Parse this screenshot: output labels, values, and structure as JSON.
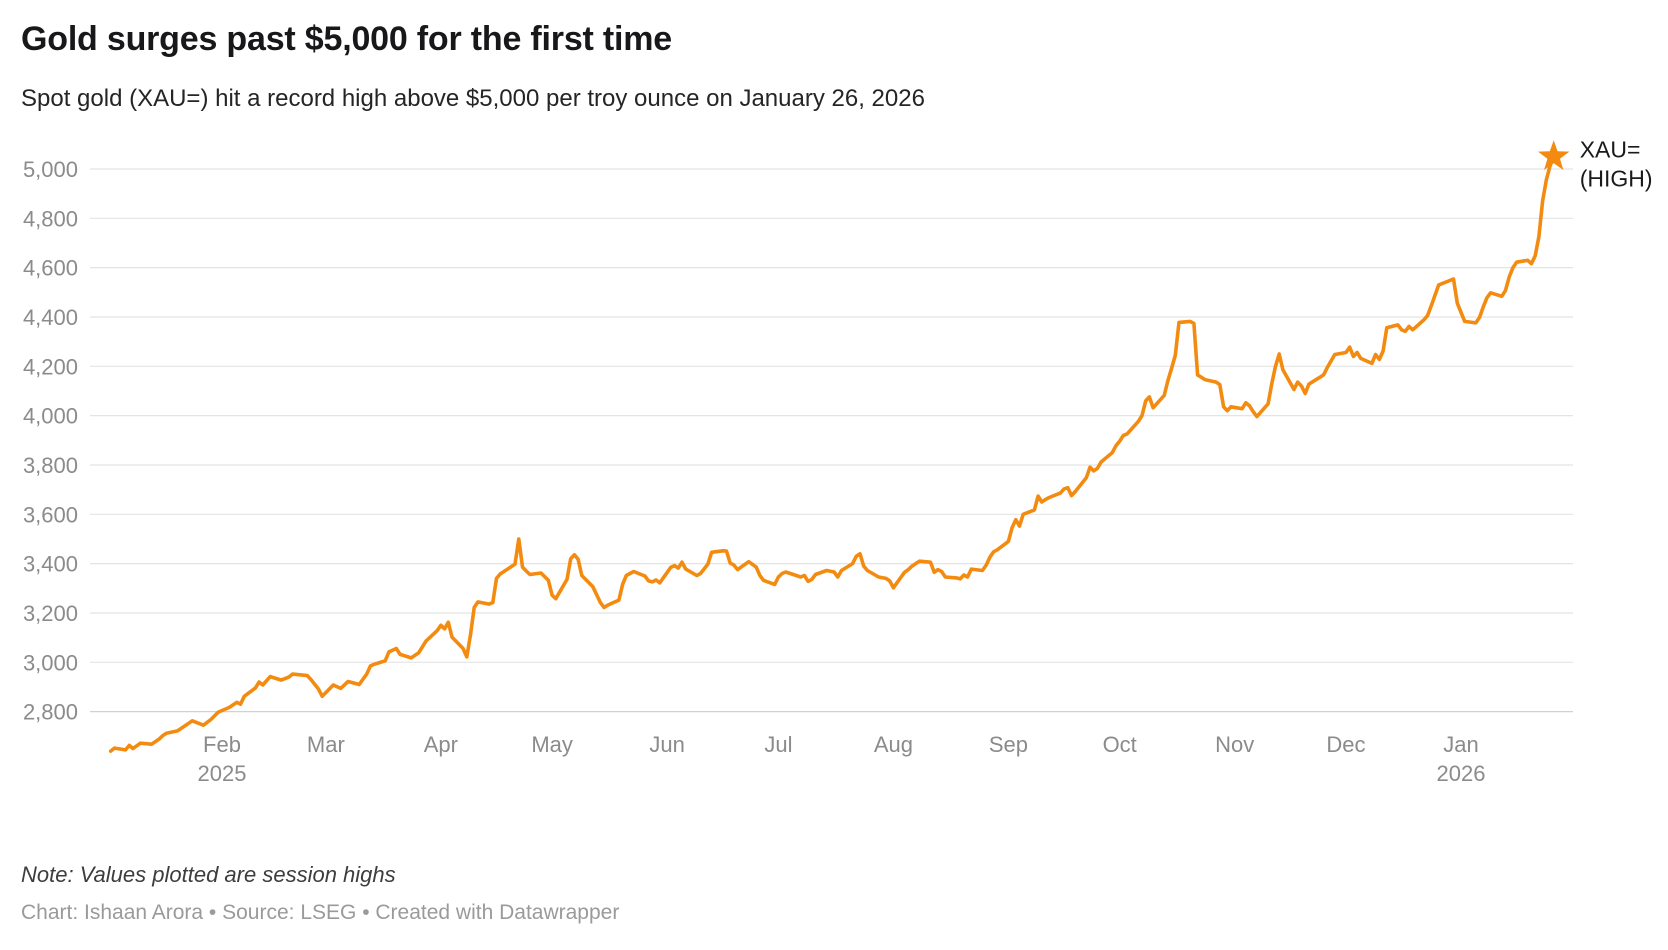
{
  "header": {
    "title": "Gold surges past $5,000 for the first time",
    "subtitle": "Spot gold (XAU=) hit a record high above $5,000 per troy ounce on January 26, 2026"
  },
  "footer": {
    "note": "Note: Values plotted are session highs",
    "byline": "Chart: Ishaan Arora • Source: LSEG • Created with Datawrapper"
  },
  "annotation": {
    "line1": "XAU=",
    "line2": "(HIGH)"
  },
  "colors": {
    "line": "#F38B10",
    "star": "#F38B10",
    "grid": "#E4E4E4",
    "baseline": "#D2D2D2",
    "axis_text": "#8B8B8B",
    "annotation_text": "#1A1A1A"
  },
  "chart_data": {
    "type": "line",
    "title": "Gold surges past $5,000 for the first time",
    "subtitle": "Spot gold (XAU=) hit a record high above $5,000 per troy ounce on January 26, 2026",
    "unit": "USD per troy ounce",
    "grid": "horizontal",
    "legend_position": "end-of-line annotation",
    "marker": "star-at-last-point",
    "ylim": [
      2620,
      5060
    ],
    "xlim": [
      "2025-01-02",
      "2026-01-26"
    ],
    "yticks": [
      2800,
      3000,
      3200,
      3400,
      3600,
      3800,
      4000,
      4200,
      4400,
      4600,
      4800,
      5000
    ],
    "xticks": [
      {
        "label": "Feb",
        "date": "2025-02-01",
        "year": "2025"
      },
      {
        "label": "Mar",
        "date": "2025-03-01"
      },
      {
        "label": "Apr",
        "date": "2025-04-01"
      },
      {
        "label": "May",
        "date": "2025-05-01"
      },
      {
        "label": "Jun",
        "date": "2025-06-01"
      },
      {
        "label": "Jul",
        "date": "2025-07-01"
      },
      {
        "label": "Aug",
        "date": "2025-08-01"
      },
      {
        "label": "Sep",
        "date": "2025-09-01"
      },
      {
        "label": "Oct",
        "date": "2025-10-01"
      },
      {
        "label": "Nov",
        "date": "2025-11-01"
      },
      {
        "label": "Dec",
        "date": "2025-12-01"
      },
      {
        "label": "Jan",
        "date": "2026-01-01",
        "year": "2026"
      }
    ],
    "series": [
      {
        "name": "XAU= (HIGH)",
        "points": [
          [
            "2025-01-02",
            2640
          ],
          [
            "2025-01-03",
            2652
          ],
          [
            "2025-01-06",
            2645
          ],
          [
            "2025-01-07",
            2663
          ],
          [
            "2025-01-08",
            2650
          ],
          [
            "2025-01-10",
            2672
          ],
          [
            "2025-01-13",
            2668
          ],
          [
            "2025-01-15",
            2688
          ],
          [
            "2025-01-16",
            2702
          ],
          [
            "2025-01-17",
            2712
          ],
          [
            "2025-01-20",
            2722
          ],
          [
            "2025-01-22",
            2742
          ],
          [
            "2025-01-24",
            2763
          ],
          [
            "2025-01-27",
            2745
          ],
          [
            "2025-01-29",
            2768
          ],
          [
            "2025-01-31",
            2798
          ],
          [
            "2025-02-03",
            2817
          ],
          [
            "2025-02-05",
            2838
          ],
          [
            "2025-02-06",
            2830
          ],
          [
            "2025-02-07",
            2862
          ],
          [
            "2025-02-10",
            2896
          ],
          [
            "2025-02-11",
            2920
          ],
          [
            "2025-02-12",
            2908
          ],
          [
            "2025-02-14",
            2942
          ],
          [
            "2025-02-17",
            2928
          ],
          [
            "2025-02-19",
            2940
          ],
          [
            "2025-02-20",
            2952
          ],
          [
            "2025-02-24",
            2946
          ],
          [
            "2025-02-25",
            2930
          ],
          [
            "2025-02-27",
            2892
          ],
          [
            "2025-02-28",
            2862
          ],
          [
            "2025-03-03",
            2908
          ],
          [
            "2025-03-05",
            2894
          ],
          [
            "2025-03-07",
            2922
          ],
          [
            "2025-03-10",
            2910
          ],
          [
            "2025-03-12",
            2952
          ],
          [
            "2025-03-13",
            2985
          ],
          [
            "2025-03-14",
            2992
          ],
          [
            "2025-03-17",
            3006
          ],
          [
            "2025-03-18",
            3042
          ],
          [
            "2025-03-20",
            3056
          ],
          [
            "2025-03-21",
            3032
          ],
          [
            "2025-03-24",
            3018
          ],
          [
            "2025-03-26",
            3038
          ],
          [
            "2025-03-27",
            3062
          ],
          [
            "2025-03-28",
            3086
          ],
          [
            "2025-03-31",
            3128
          ],
          [
            "2025-04-01",
            3150
          ],
          [
            "2025-04-02",
            3136
          ],
          [
            "2025-04-03",
            3162
          ],
          [
            "2025-04-04",
            3102
          ],
          [
            "2025-04-07",
            3056
          ],
          [
            "2025-04-08",
            3022
          ],
          [
            "2025-04-09",
            3112
          ],
          [
            "2025-04-10",
            3222
          ],
          [
            "2025-04-11",
            3245
          ],
          [
            "2025-04-14",
            3236
          ],
          [
            "2025-04-15",
            3242
          ],
          [
            "2025-04-16",
            3340
          ],
          [
            "2025-04-17",
            3358
          ],
          [
            "2025-04-21",
            3398
          ],
          [
            "2025-04-22",
            3500
          ],
          [
            "2025-04-23",
            3386
          ],
          [
            "2025-04-24",
            3370
          ],
          [
            "2025-04-25",
            3356
          ],
          [
            "2025-04-28",
            3362
          ],
          [
            "2025-04-30",
            3332
          ],
          [
            "2025-05-01",
            3272
          ],
          [
            "2025-05-02",
            3258
          ],
          [
            "2025-05-05",
            3336
          ],
          [
            "2025-05-06",
            3420
          ],
          [
            "2025-05-07",
            3436
          ],
          [
            "2025-05-08",
            3418
          ],
          [
            "2025-05-09",
            3352
          ],
          [
            "2025-05-12",
            3306
          ],
          [
            "2025-05-14",
            3242
          ],
          [
            "2025-05-15",
            3222
          ],
          [
            "2025-05-16",
            3232
          ],
          [
            "2025-05-19",
            3252
          ],
          [
            "2025-05-20",
            3316
          ],
          [
            "2025-05-21",
            3352
          ],
          [
            "2025-05-23",
            3368
          ],
          [
            "2025-05-26",
            3350
          ],
          [
            "2025-05-27",
            3330
          ],
          [
            "2025-05-28",
            3326
          ],
          [
            "2025-05-29",
            3334
          ],
          [
            "2025-05-30",
            3322
          ],
          [
            "2025-06-02",
            3385
          ],
          [
            "2025-06-03",
            3392
          ],
          [
            "2025-06-04",
            3382
          ],
          [
            "2025-06-05",
            3406
          ],
          [
            "2025-06-06",
            3378
          ],
          [
            "2025-06-09",
            3352
          ],
          [
            "2025-06-10",
            3360
          ],
          [
            "2025-06-12",
            3398
          ],
          [
            "2025-06-13",
            3446
          ],
          [
            "2025-06-16",
            3452
          ],
          [
            "2025-06-17",
            3451
          ],
          [
            "2025-06-18",
            3402
          ],
          [
            "2025-06-19",
            3394
          ],
          [
            "2025-06-20",
            3376
          ],
          [
            "2025-06-23",
            3408
          ],
          [
            "2025-06-25",
            3386
          ],
          [
            "2025-06-26",
            3352
          ],
          [
            "2025-06-27",
            3332
          ],
          [
            "2025-06-30",
            3316
          ],
          [
            "2025-07-01",
            3346
          ],
          [
            "2025-07-02",
            3360
          ],
          [
            "2025-07-03",
            3366
          ],
          [
            "2025-07-07",
            3346
          ],
          [
            "2025-07-08",
            3352
          ],
          [
            "2025-07-09",
            3328
          ],
          [
            "2025-07-10",
            3336
          ],
          [
            "2025-07-11",
            3356
          ],
          [
            "2025-07-14",
            3372
          ],
          [
            "2025-07-16",
            3366
          ],
          [
            "2025-07-17",
            3346
          ],
          [
            "2025-07-18",
            3372
          ],
          [
            "2025-07-21",
            3400
          ],
          [
            "2025-07-22",
            3430
          ],
          [
            "2025-07-23",
            3440
          ],
          [
            "2025-07-24",
            3390
          ],
          [
            "2025-07-25",
            3372
          ],
          [
            "2025-07-28",
            3346
          ],
          [
            "2025-07-30",
            3340
          ],
          [
            "2025-07-31",
            3330
          ],
          [
            "2025-08-01",
            3302
          ],
          [
            "2025-08-04",
            3365
          ],
          [
            "2025-08-05",
            3376
          ],
          [
            "2025-08-06",
            3390
          ],
          [
            "2025-08-07",
            3400
          ],
          [
            "2025-08-08",
            3410
          ],
          [
            "2025-08-11",
            3406
          ],
          [
            "2025-08-12",
            3365
          ],
          [
            "2025-08-13",
            3376
          ],
          [
            "2025-08-14",
            3368
          ],
          [
            "2025-08-15",
            3346
          ],
          [
            "2025-08-18",
            3342
          ],
          [
            "2025-08-19",
            3338
          ],
          [
            "2025-08-20",
            3354
          ],
          [
            "2025-08-21",
            3346
          ],
          [
            "2025-08-22",
            3378
          ],
          [
            "2025-08-25",
            3372
          ],
          [
            "2025-08-26",
            3394
          ],
          [
            "2025-08-27",
            3426
          ],
          [
            "2025-08-28",
            3448
          ],
          [
            "2025-08-29",
            3456
          ],
          [
            "2025-09-01",
            3490
          ],
          [
            "2025-09-02",
            3546
          ],
          [
            "2025-09-03",
            3578
          ],
          [
            "2025-09-04",
            3552
          ],
          [
            "2025-09-05",
            3600
          ],
          [
            "2025-09-08",
            3618
          ],
          [
            "2025-09-09",
            3674
          ],
          [
            "2025-09-10",
            3650
          ],
          [
            "2025-09-11",
            3660
          ],
          [
            "2025-09-12",
            3668
          ],
          [
            "2025-09-15",
            3686
          ],
          [
            "2025-09-16",
            3703
          ],
          [
            "2025-09-17",
            3708
          ],
          [
            "2025-09-18",
            3676
          ],
          [
            "2025-09-19",
            3692
          ],
          [
            "2025-09-22",
            3748
          ],
          [
            "2025-09-23",
            3791
          ],
          [
            "2025-09-24",
            3776
          ],
          [
            "2025-09-25",
            3786
          ],
          [
            "2025-09-26",
            3812
          ],
          [
            "2025-09-29",
            3850
          ],
          [
            "2025-09-30",
            3878
          ],
          [
            "2025-10-01",
            3897
          ],
          [
            "2025-10-02",
            3920
          ],
          [
            "2025-10-03",
            3926
          ],
          [
            "2025-10-06",
            3976
          ],
          [
            "2025-10-07",
            4000
          ],
          [
            "2025-10-08",
            4060
          ],
          [
            "2025-10-09",
            4076
          ],
          [
            "2025-10-10",
            4032
          ],
          [
            "2025-10-13",
            4082
          ],
          [
            "2025-10-14",
            4142
          ],
          [
            "2025-10-15",
            4192
          ],
          [
            "2025-10-16",
            4245
          ],
          [
            "2025-10-17",
            4378
          ],
          [
            "2025-10-20",
            4382
          ],
          [
            "2025-10-21",
            4374
          ],
          [
            "2025-10-22",
            4165
          ],
          [
            "2025-10-23",
            4156
          ],
          [
            "2025-10-24",
            4146
          ],
          [
            "2025-10-27",
            4136
          ],
          [
            "2025-10-28",
            4126
          ],
          [
            "2025-10-29",
            4036
          ],
          [
            "2025-10-30",
            4020
          ],
          [
            "2025-10-31",
            4036
          ],
          [
            "2025-11-03",
            4028
          ],
          [
            "2025-11-04",
            4052
          ],
          [
            "2025-11-05",
            4040
          ],
          [
            "2025-11-06",
            4016
          ],
          [
            "2025-11-07",
            3996
          ],
          [
            "2025-11-10",
            4048
          ],
          [
            "2025-11-11",
            4130
          ],
          [
            "2025-11-12",
            4200
          ],
          [
            "2025-11-13",
            4250
          ],
          [
            "2025-11-14",
            4186
          ],
          [
            "2025-11-17",
            4106
          ],
          [
            "2025-11-18",
            4136
          ],
          [
            "2025-11-19",
            4120
          ],
          [
            "2025-11-20",
            4090
          ],
          [
            "2025-11-21",
            4128
          ],
          [
            "2025-11-24",
            4156
          ],
          [
            "2025-11-25",
            4166
          ],
          [
            "2025-11-26",
            4196
          ],
          [
            "2025-11-28",
            4248
          ],
          [
            "2025-12-01",
            4256
          ],
          [
            "2025-12-02",
            4278
          ],
          [
            "2025-12-03",
            4240
          ],
          [
            "2025-12-04",
            4256
          ],
          [
            "2025-12-05",
            4232
          ],
          [
            "2025-12-08",
            4212
          ],
          [
            "2025-12-09",
            4248
          ],
          [
            "2025-12-10",
            4228
          ],
          [
            "2025-12-11",
            4262
          ],
          [
            "2025-12-12",
            4356
          ],
          [
            "2025-12-15",
            4368
          ],
          [
            "2025-12-16",
            4348
          ],
          [
            "2025-12-17",
            4342
          ],
          [
            "2025-12-18",
            4362
          ],
          [
            "2025-12-19",
            4348
          ],
          [
            "2025-12-22",
            4388
          ],
          [
            "2025-12-23",
            4406
          ],
          [
            "2025-12-24",
            4446
          ],
          [
            "2025-12-26",
            4530
          ],
          [
            "2025-12-29",
            4548
          ],
          [
            "2025-12-30",
            4554
          ],
          [
            "2025-12-31",
            4456
          ],
          [
            "2026-01-02",
            4382
          ],
          [
            "2026-01-05",
            4376
          ],
          [
            "2026-01-06",
            4398
          ],
          [
            "2026-01-07",
            4440
          ],
          [
            "2026-01-08",
            4478
          ],
          [
            "2026-01-09",
            4498
          ],
          [
            "2026-01-12",
            4484
          ],
          [
            "2026-01-13",
            4508
          ],
          [
            "2026-01-14",
            4562
          ],
          [
            "2026-01-15",
            4600
          ],
          [
            "2026-01-16",
            4622
          ],
          [
            "2026-01-19",
            4630
          ],
          [
            "2026-01-20",
            4616
          ],
          [
            "2026-01-21",
            4648
          ],
          [
            "2026-01-22",
            4726
          ],
          [
            "2026-01-23",
            4870
          ],
          [
            "2026-01-24",
            4955
          ],
          [
            "2026-01-25",
            5012
          ],
          [
            "2026-01-26",
            5050
          ]
        ]
      }
    ]
  }
}
